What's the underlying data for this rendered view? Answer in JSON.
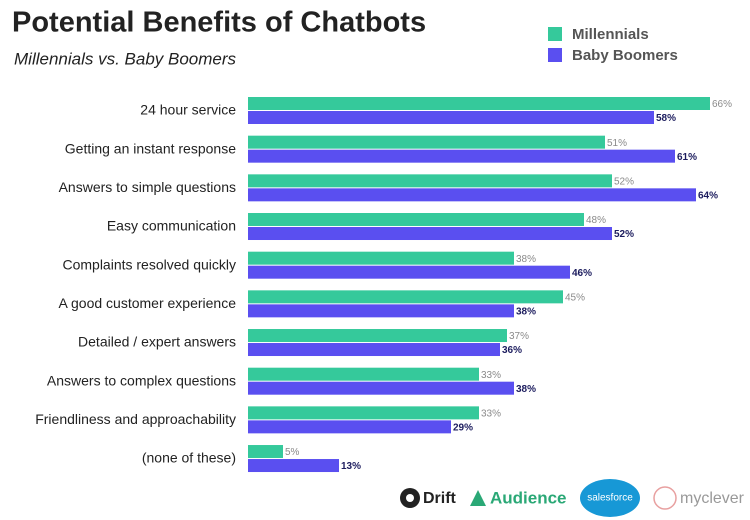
{
  "chart_data": {
    "type": "hbar",
    "title": "Potential Benefits of Chatbots",
    "subtitle": "Millennials vs. Baby Boomers",
    "categories": [
      "24 hour service",
      "Getting an instant response",
      "Answers to simple questions",
      "Easy communication",
      "Complaints resolved quickly",
      "A good customer experience",
      "Detailed / expert answers",
      "Answers to complex questions",
      "Friendliness and approachability",
      "(none of these)"
    ],
    "series": [
      {
        "name": "Millennials",
        "color": "#35c99b",
        "label_color": "#8a8a8a",
        "values": [
          66,
          51,
          52,
          48,
          38,
          45,
          37,
          33,
          33,
          5
        ],
        "value_labels": [
          "66%",
          "51%",
          "52%",
          "48%",
          "38%",
          "45%",
          "37%",
          "33%",
          "33%",
          "5%"
        ]
      },
      {
        "name": "Baby Boomers",
        "color": "#5a4ff0",
        "label_color": "#1c1c5e",
        "values": [
          58,
          61,
          64,
          52,
          46,
          38,
          36,
          38,
          29,
          13
        ],
        "value_labels": [
          "58%",
          "61%",
          "64%",
          "52%",
          "46%",
          "38%",
          "36%",
          "38%",
          "29%",
          "13%"
        ]
      }
    ],
    "xlim": [
      0,
      70
    ],
    "legend": "top-right",
    "logos": [
      "Drift",
      "Audience",
      "salesforce",
      "myclever"
    ]
  }
}
